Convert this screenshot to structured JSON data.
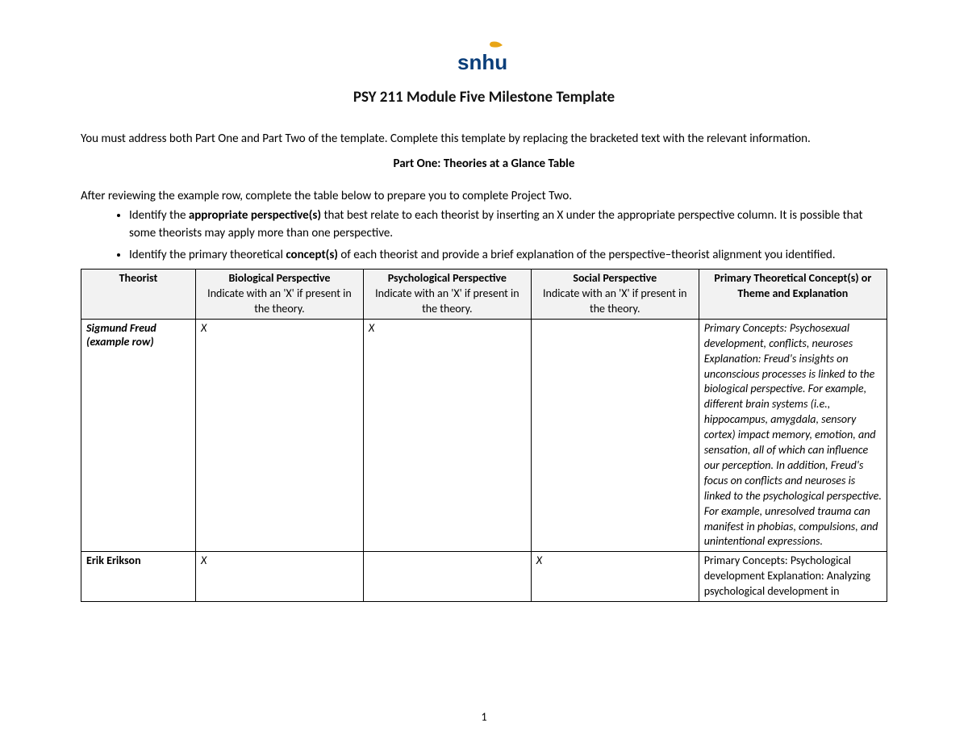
{
  "logo": {
    "text": "snhu",
    "text_color": "#0a3e7a",
    "leaf_color": "#e8a516"
  },
  "title": "PSY 211 Module Five Milestone Template",
  "intro": "You must address both Part One and Part Two of the template. Complete this template by replacing the bracketed text with the relevant information.",
  "part_one_title": "Part One: Theories at a Glance Table",
  "after_review": "After reviewing the example row, complete the table below to prepare you to complete Project Two.",
  "bullets": {
    "b1_pre": "Identify the ",
    "b1_bold": "appropriate perspective(s)",
    "b1_post": " that best relate to each theorist by inserting an X under the appropriate perspective column. It is possible that some theorists may apply more than one perspective.",
    "b2_pre": "Identify the primary theoretical ",
    "b2_bold": "concept(s)",
    "b2_post": " of each theorist and provide a brief explanation of the perspective–theorist alignment you identified."
  },
  "table": {
    "headers": {
      "theorist": "Theorist",
      "bio_bold": "Biological Perspective",
      "bio_sub": "Indicate with an 'X' if present in the theory.",
      "psy_bold": "Psychological Perspective",
      "psy_sub": "Indicate with an 'X' if present in the theory.",
      "soc_bold": "Social Perspective",
      "soc_sub": "Indicate with an 'X' if present in the theory.",
      "prim_bold": "Primary Theoretical Concept(s) or Theme and Explanation"
    },
    "rows": [
      {
        "theorist": "Sigmund Freud (example row)",
        "theorist_italic": true,
        "bio": "X",
        "psy": "X",
        "soc": "",
        "explain": "Primary Concepts: Psychosexual development, conflicts, neuroses Explanation: Freud's insights on unconscious processes is linked to the biological perspective. For example, different brain systems (i.e., hippocampus, amygdala, sensory cortex) impact memory, emotion, and sensation, all of which can influence our perception. In addition, Freud's focus on conflicts and neuroses is linked to the psychological perspective. For example, unresolved trauma can manifest in phobias, compulsions, and unintentional expressions.",
        "explain_italic": true
      },
      {
        "theorist": "Erik Erikson",
        "theorist_italic": false,
        "bio": "X",
        "psy": "",
        "soc": "X",
        "explain": "Primary Concepts: Psychological development\nExplanation: Analyzing psychological development in",
        "explain_italic": false
      }
    ]
  },
  "page_number": "1"
}
